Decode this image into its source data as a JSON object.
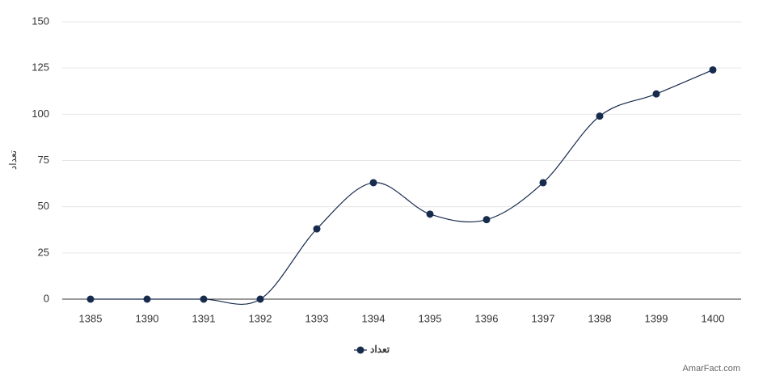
{
  "chart_data": {
    "type": "spline",
    "y_axis_title": "تعداد",
    "categories": [
      "1385",
      "1390",
      "1391",
      "1392",
      "1393",
      "1394",
      "1395",
      "1396",
      "1397",
      "1398",
      "1399",
      "1400"
    ],
    "series": [
      {
        "name": "تعداد",
        "color": "#172b4d",
        "values": [
          0,
          0,
          0,
          0,
          38,
          63,
          46,
          43,
          63,
          99,
          111,
          124
        ]
      }
    ],
    "ylim": [
      0,
      150
    ],
    "yticks": [
      0,
      25,
      50,
      75,
      100,
      125,
      150
    ],
    "grid": true,
    "legend_position": "bottom",
    "credit": "AmarFact.com"
  }
}
